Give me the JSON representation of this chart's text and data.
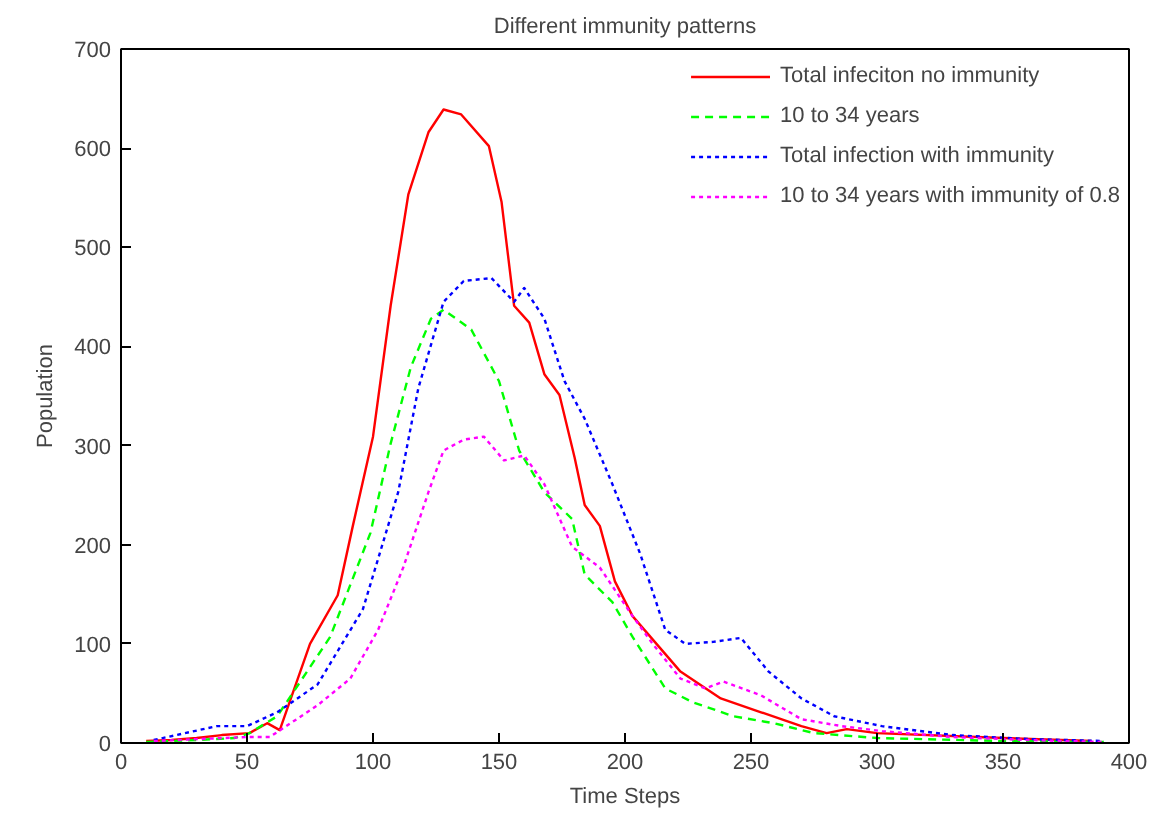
{
  "chart_data": {
    "type": "line",
    "title": "Different immunity patterns",
    "xlabel": "Time Steps",
    "ylabel": "Population",
    "xlim": [
      0,
      400
    ],
    "ylim": [
      0,
      700
    ],
    "xticks": [
      0,
      50,
      100,
      150,
      200,
      250,
      300,
      350,
      400
    ],
    "yticks": [
      0,
      100,
      200,
      300,
      400,
      500,
      600,
      700
    ],
    "grid": false,
    "legend": "top right",
    "marker": "none",
    "series": [
      {
        "name": "Total infeciton no immunity",
        "color": "#ff0000",
        "line_style": "solid",
        "x": [
          10,
          20,
          30,
          40,
          51,
          58,
          63,
          75,
          86,
          92,
          100,
          107,
          114,
          122,
          128,
          135,
          146,
          151,
          156,
          162,
          168,
          174,
          180,
          184,
          190,
          196,
          203,
          222,
          238,
          254,
          270,
          280,
          288,
          300,
          350,
          385
        ],
        "values": [
          2,
          3,
          5,
          8,
          10,
          20,
          13,
          100,
          149,
          219,
          309,
          441,
          553,
          616,
          639,
          634,
          602,
          546,
          441,
          424,
          372,
          351,
          288,
          240,
          219,
          163,
          128,
          72,
          45,
          31,
          17,
          10,
          14,
          10,
          5,
          2
        ]
      },
      {
        "name": "10 to 34 years",
        "color": "#00ff00",
        "line_style": "dashed",
        "x": [
          10,
          30,
          45,
          51,
          62,
          83,
          99,
          107,
          115,
          123,
          128,
          139,
          150,
          158,
          168,
          179,
          184,
          195,
          203,
          216,
          227,
          243,
          259,
          275,
          300,
          350,
          390
        ],
        "values": [
          1,
          3,
          5,
          10,
          27,
          107,
          212,
          302,
          379,
          428,
          437,
          417,
          365,
          295,
          253,
          226,
          170,
          142,
          107,
          55,
          41,
          27,
          20,
          10,
          5,
          2,
          1
        ]
      },
      {
        "name": "Total infection with immunity",
        "color": "#0000ff",
        "line_style": "dotted",
        "x": [
          13,
          38,
          50,
          62,
          78,
          96,
          110,
          118,
          128,
          136,
          147,
          156,
          160,
          168,
          176,
          184,
          195,
          206,
          216,
          224,
          235,
          246,
          257,
          270,
          283,
          302,
          330,
          360,
          390
        ],
        "values": [
          3,
          17,
          17,
          31,
          59,
          135,
          253,
          358,
          445,
          466,
          469,
          445,
          459,
          428,
          365,
          327,
          261,
          191,
          114,
          100,
          102,
          106,
          72,
          45,
          27,
          17,
          8,
          4,
          2
        ]
      },
      {
        "name": "10 to 34 years with immunity of 0.8",
        "color": "#ff00ff",
        "line_style": "dotted",
        "x": [
          13,
          50,
          59,
          78,
          91,
          102,
          112,
          122,
          128,
          136,
          144,
          152,
          160,
          168,
          179,
          190,
          203,
          211,
          222,
          232,
          239,
          254,
          270,
          286,
          302,
          330,
          360,
          390
        ],
        "values": [
          2,
          6,
          6,
          38,
          65,
          114,
          177,
          253,
          295,
          306,
          309,
          285,
          290,
          261,
          198,
          177,
          128,
          100,
          65,
          55,
          62,
          48,
          24,
          17,
          12,
          6,
          3,
          1
        ]
      }
    ]
  }
}
